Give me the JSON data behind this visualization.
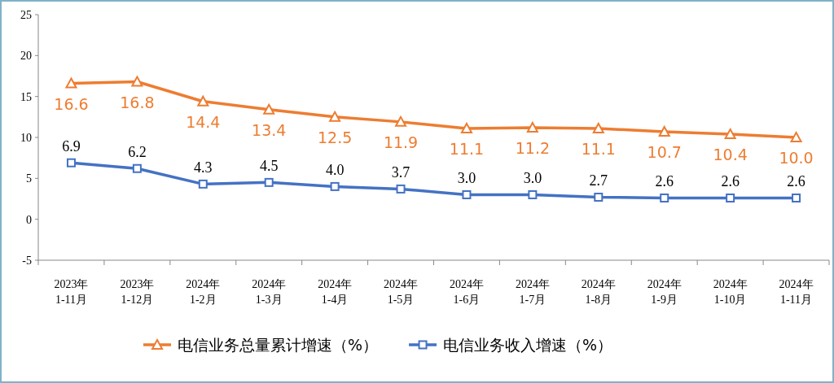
{
  "chart_data": {
    "type": "line",
    "categories": [
      "2023年\n1-11月",
      "2023年\n1-12月",
      "2024年\n1-2月",
      "2024年\n1-3月",
      "2024年\n1-4月",
      "2024年\n1-5月",
      "2024年\n1-6月",
      "2024年\n1-7月",
      "2024年\n1-8月",
      "2024年\n1-9月",
      "2024年\n1-10月",
      "2024年\n1-11月"
    ],
    "series": [
      {
        "name": "电信业务总量累计增速（%）",
        "color": "#ed7d31",
        "marker": "triangle",
        "values": [
          16.6,
          16.8,
          14.4,
          13.4,
          12.5,
          11.9,
          11.1,
          11.2,
          11.1,
          10.7,
          10.4,
          10.0
        ],
        "value_labels": [
          "16.6",
          "16.8",
          "14.4",
          "13.4",
          "12.5",
          "11.9",
          "11.1",
          "11.2",
          "11.1",
          "10.7",
          "10.4",
          "10.0"
        ]
      },
      {
        "name": "电信业务收入增速（%）",
        "color": "#4472c4",
        "marker": "square",
        "values": [
          6.9,
          6.2,
          4.3,
          4.5,
          4.0,
          3.7,
          3.0,
          3.0,
          2.7,
          2.6,
          2.6,
          2.6
        ],
        "value_labels": [
          "6.9",
          "6.2",
          "4.3",
          "4.5",
          "4.0",
          "3.7",
          "3.0",
          "3.0",
          "2.7",
          "2.6",
          "2.6",
          "2.6"
        ]
      }
    ],
    "ylim": [
      -5,
      25
    ],
    "yticks": [
      -5,
      0,
      5,
      10,
      15,
      20,
      25
    ],
    "legend": "bottom",
    "line_style": "solid"
  }
}
